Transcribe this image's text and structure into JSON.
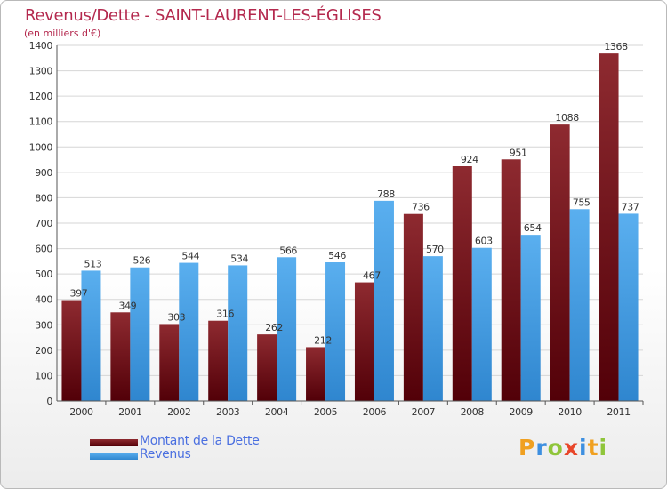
{
  "chart_data": {
    "type": "bar",
    "title": "Revenus/Dette - SAINT-LAURENT-LES-ÉGLISES",
    "subtitle": "(en milliers d'€)",
    "categories": [
      "2000",
      "2001",
      "2002",
      "2003",
      "2004",
      "2005",
      "2006",
      "2007",
      "2008",
      "2009",
      "2010",
      "2011"
    ],
    "series": [
      {
        "name": "Montant de la Dette",
        "color": "#7a1a1f",
        "values": [
          397,
          349,
          303,
          316,
          262,
          212,
          467,
          736,
          924,
          951,
          1088,
          1368
        ]
      },
      {
        "name": "Revenus",
        "color": "#4da3e8",
        "values": [
          513,
          526,
          544,
          534,
          566,
          546,
          788,
          570,
          603,
          654,
          755,
          737
        ]
      }
    ],
    "ylim": [
      0,
      1400
    ],
    "yticks": [
      0,
      100,
      200,
      300,
      400,
      500,
      600,
      700,
      800,
      900,
      1000,
      1100,
      1200,
      1300,
      1400
    ],
    "grid": true,
    "legend": "bottom-left"
  },
  "logo": {
    "letters": [
      {
        "ch": "P",
        "color": "#f0a020"
      },
      {
        "ch": "r",
        "color": "#3d8fe0"
      },
      {
        "ch": "o",
        "color": "#8fc53a"
      },
      {
        "ch": "x",
        "color": "#e8462a"
      },
      {
        "ch": "i",
        "color": "#3d8fe0"
      },
      {
        "ch": "t",
        "color": "#f0a020"
      },
      {
        "ch": "i",
        "color": "#8fc53a"
      }
    ]
  }
}
